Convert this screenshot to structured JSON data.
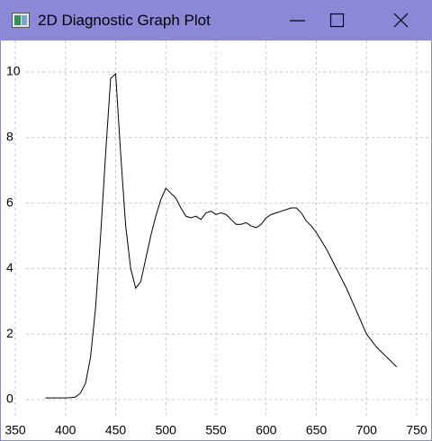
{
  "window": {
    "title": "2D Diagnostic Graph Plot"
  },
  "chart_data": {
    "type": "line",
    "x": [
      380,
      385,
      390,
      395,
      400,
      405,
      410,
      415,
      420,
      425,
      430,
      435,
      440,
      445,
      450,
      455,
      460,
      465,
      470,
      475,
      480,
      485,
      490,
      495,
      500,
      505,
      510,
      515,
      520,
      525,
      530,
      535,
      540,
      545,
      550,
      555,
      560,
      565,
      570,
      575,
      580,
      585,
      590,
      595,
      600,
      605,
      610,
      615,
      620,
      625,
      630,
      635,
      640,
      645,
      650,
      655,
      660,
      665,
      670,
      675,
      680,
      685,
      690,
      695,
      700,
      705,
      710,
      715,
      720,
      725,
      730
    ],
    "series": [
      {
        "color": "#000000",
        "values": [
          0.05,
          0.05,
          0.05,
          0.05,
          0.05,
          0.06,
          0.08,
          0.2,
          0.5,
          1.3,
          2.8,
          5.0,
          7.5,
          9.8,
          9.95,
          7.5,
          5.3,
          4.0,
          3.4,
          3.6,
          4.3,
          5.0,
          5.6,
          6.1,
          6.45,
          6.3,
          6.15,
          5.85,
          5.6,
          5.55,
          5.6,
          5.5,
          5.7,
          5.75,
          5.65,
          5.7,
          5.65,
          5.5,
          5.35,
          5.35,
          5.4,
          5.3,
          5.25,
          5.35,
          5.55,
          5.65,
          5.7,
          5.75,
          5.8,
          5.85,
          5.85,
          5.7,
          5.45,
          5.3,
          5.1,
          4.85,
          4.6,
          4.3,
          4.0,
          3.7,
          3.4,
          3.05,
          2.7,
          2.35,
          2.0,
          1.8,
          1.6,
          1.45,
          1.3,
          1.15,
          1.0
        ]
      }
    ],
    "xlim": [
      350,
      750
    ],
    "ylim": [
      0,
      10
    ],
    "xticks": [
      350,
      400,
      450,
      500,
      550,
      600,
      650,
      700,
      750
    ],
    "yticks": [
      0,
      2,
      4,
      6,
      8,
      10
    ],
    "grid": true
  }
}
